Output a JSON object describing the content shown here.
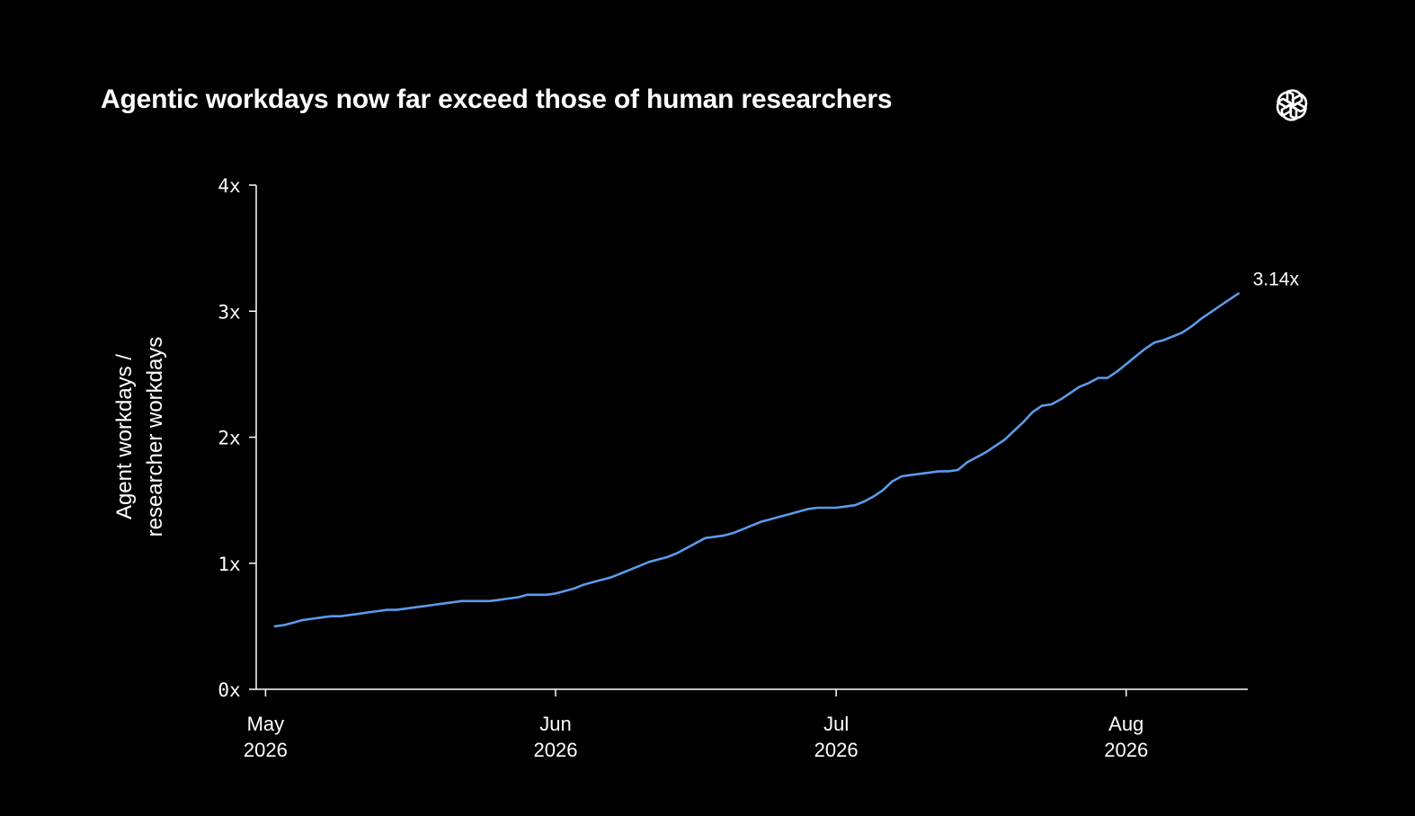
{
  "title": "Agentic workdays now far exceed those of human researchers",
  "logo_icon": "openai-logo-icon",
  "colors": {
    "background": "#000000",
    "text": "#ffffff",
    "axis": "#ffffff",
    "line": "#5b9bea"
  },
  "chart_data": {
    "type": "line",
    "title": "Agentic workdays now far exceed those of human researchers",
    "ylabel_lines": [
      "Agent workdays /",
      "researcher workdays"
    ],
    "xlabel": "",
    "ylim": [
      0,
      4
    ],
    "y_ticks": [
      {
        "value": 0,
        "label": "0x"
      },
      {
        "value": 1,
        "label": "1x"
      },
      {
        "value": 2,
        "label": "2x"
      },
      {
        "value": 3,
        "label": "3x"
      },
      {
        "value": 4,
        "label": "4x"
      }
    ],
    "xlim": [
      "2026-04-30",
      "2026-08-14"
    ],
    "x_ticks": [
      {
        "date": "2026-05-01",
        "label": [
          "May",
          "2026"
        ]
      },
      {
        "date": "2026-06-01",
        "label": [
          "Jun",
          "2026"
        ]
      },
      {
        "date": "2026-07-01",
        "label": [
          "Jul",
          "2026"
        ]
      },
      {
        "date": "2026-08-01",
        "label": [
          "Aug",
          "2026"
        ]
      }
    ],
    "grid": false,
    "end_label": "3.14x",
    "series": [
      {
        "points": [
          [
            "2026-05-02",
            0.5
          ],
          [
            "2026-05-03",
            0.51
          ],
          [
            "2026-05-04",
            0.53
          ],
          [
            "2026-05-05",
            0.55
          ],
          [
            "2026-05-06",
            0.56
          ],
          [
            "2026-05-07",
            0.57
          ],
          [
            "2026-05-08",
            0.58
          ],
          [
            "2026-05-09",
            0.58
          ],
          [
            "2026-05-10",
            0.59
          ],
          [
            "2026-05-11",
            0.6
          ],
          [
            "2026-05-12",
            0.61
          ],
          [
            "2026-05-13",
            0.62
          ],
          [
            "2026-05-14",
            0.63
          ],
          [
            "2026-05-15",
            0.63
          ],
          [
            "2026-05-16",
            0.64
          ],
          [
            "2026-05-17",
            0.65
          ],
          [
            "2026-05-18",
            0.66
          ],
          [
            "2026-05-19",
            0.67
          ],
          [
            "2026-05-20",
            0.68
          ],
          [
            "2026-05-21",
            0.69
          ],
          [
            "2026-05-22",
            0.7
          ],
          [
            "2026-05-23",
            0.7
          ],
          [
            "2026-05-24",
            0.7
          ],
          [
            "2026-05-25",
            0.7
          ],
          [
            "2026-05-26",
            0.71
          ],
          [
            "2026-05-27",
            0.72
          ],
          [
            "2026-05-28",
            0.73
          ],
          [
            "2026-05-29",
            0.75
          ],
          [
            "2026-05-30",
            0.75
          ],
          [
            "2026-05-31",
            0.75
          ],
          [
            "2026-06-01",
            0.76
          ],
          [
            "2026-06-02",
            0.78
          ],
          [
            "2026-06-03",
            0.8
          ],
          [
            "2026-06-04",
            0.83
          ],
          [
            "2026-06-05",
            0.85
          ],
          [
            "2026-06-06",
            0.87
          ],
          [
            "2026-06-07",
            0.89
          ],
          [
            "2026-06-08",
            0.92
          ],
          [
            "2026-06-09",
            0.95
          ],
          [
            "2026-06-10",
            0.98
          ],
          [
            "2026-06-11",
            1.01
          ],
          [
            "2026-06-12",
            1.03
          ],
          [
            "2026-06-13",
            1.05
          ],
          [
            "2026-06-14",
            1.08
          ],
          [
            "2026-06-15",
            1.12
          ],
          [
            "2026-06-16",
            1.16
          ],
          [
            "2026-06-17",
            1.2
          ],
          [
            "2026-06-18",
            1.21
          ],
          [
            "2026-06-19",
            1.22
          ],
          [
            "2026-06-20",
            1.24
          ],
          [
            "2026-06-21",
            1.27
          ],
          [
            "2026-06-22",
            1.3
          ],
          [
            "2026-06-23",
            1.33
          ],
          [
            "2026-06-24",
            1.35
          ],
          [
            "2026-06-25",
            1.37
          ],
          [
            "2026-06-26",
            1.39
          ],
          [
            "2026-06-27",
            1.41
          ],
          [
            "2026-06-28",
            1.43
          ],
          [
            "2026-06-29",
            1.44
          ],
          [
            "2026-06-30",
            1.44
          ],
          [
            "2026-07-01",
            1.44
          ],
          [
            "2026-07-02",
            1.45
          ],
          [
            "2026-07-03",
            1.46
          ],
          [
            "2026-07-04",
            1.49
          ],
          [
            "2026-07-05",
            1.53
          ],
          [
            "2026-07-06",
            1.58
          ],
          [
            "2026-07-07",
            1.65
          ],
          [
            "2026-07-08",
            1.69
          ],
          [
            "2026-07-09",
            1.7
          ],
          [
            "2026-07-10",
            1.71
          ],
          [
            "2026-07-11",
            1.72
          ],
          [
            "2026-07-12",
            1.73
          ],
          [
            "2026-07-13",
            1.73
          ],
          [
            "2026-07-14",
            1.74
          ],
          [
            "2026-07-15",
            1.8
          ],
          [
            "2026-07-16",
            1.84
          ],
          [
            "2026-07-17",
            1.88
          ],
          [
            "2026-07-18",
            1.93
          ],
          [
            "2026-07-19",
            1.98
          ],
          [
            "2026-07-20",
            2.05
          ],
          [
            "2026-07-21",
            2.12
          ],
          [
            "2026-07-22",
            2.2
          ],
          [
            "2026-07-23",
            2.25
          ],
          [
            "2026-07-24",
            2.26
          ],
          [
            "2026-07-25",
            2.3
          ],
          [
            "2026-07-26",
            2.35
          ],
          [
            "2026-07-27",
            2.4
          ],
          [
            "2026-07-28",
            2.43
          ],
          [
            "2026-07-29",
            2.47
          ],
          [
            "2026-07-30",
            2.47
          ],
          [
            "2026-07-31",
            2.52
          ],
          [
            "2026-08-01",
            2.58
          ],
          [
            "2026-08-02",
            2.64
          ],
          [
            "2026-08-03",
            2.7
          ],
          [
            "2026-08-04",
            2.75
          ],
          [
            "2026-08-05",
            2.77
          ],
          [
            "2026-08-06",
            2.8
          ],
          [
            "2026-08-07",
            2.83
          ],
          [
            "2026-08-08",
            2.88
          ],
          [
            "2026-08-09",
            2.94
          ],
          [
            "2026-08-10",
            2.99
          ],
          [
            "2026-08-11",
            3.04
          ],
          [
            "2026-08-12",
            3.09
          ],
          [
            "2026-08-13",
            3.14
          ]
        ]
      }
    ]
  }
}
